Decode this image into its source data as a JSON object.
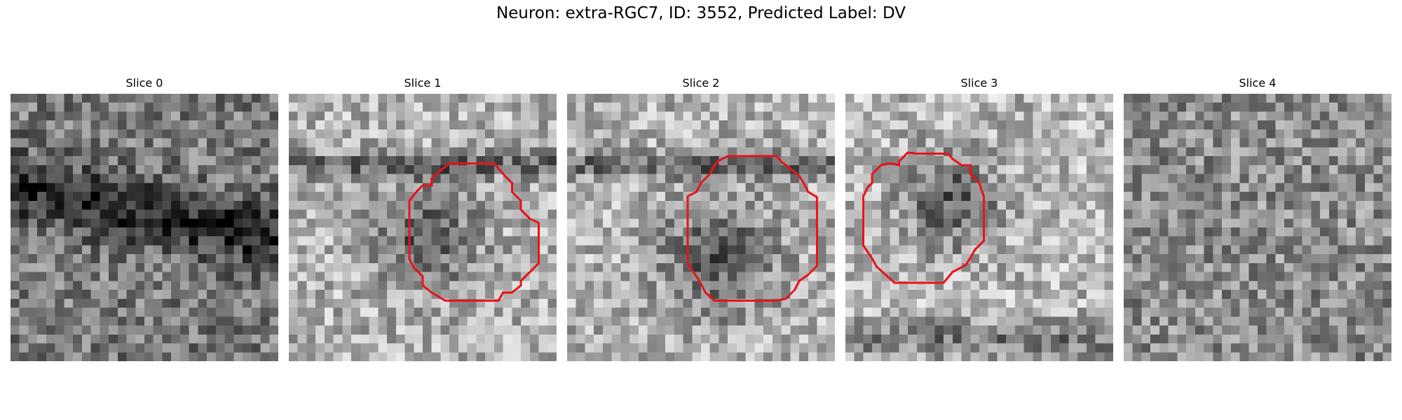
{
  "figure": {
    "title": "Neuron: extra-RGC7, ID: 3552, Predicted Label: DV"
  },
  "slices": [
    {
      "label": "Slice 0",
      "has_roi": false,
      "seed": 11,
      "base": 0.48,
      "blob": null
    },
    {
      "label": "Slice 1",
      "has_roi": true,
      "seed": 23,
      "base": 0.7,
      "blob": [
        0.5,
        0.52,
        0.22
      ]
    },
    {
      "label": "Slice 2",
      "has_roi": true,
      "seed": 37,
      "base": 0.7,
      "blob": [
        0.55,
        0.6,
        0.25
      ]
    },
    {
      "label": "Slice 3",
      "has_roi": true,
      "seed": 41,
      "base": 0.72,
      "blob": [
        0.38,
        0.38,
        0.22
      ]
    },
    {
      "label": "Slice 4",
      "has_roi": false,
      "seed": 53,
      "base": 0.55,
      "blob": null
    }
  ],
  "roi_color": "#e8141a",
  "colormap": "gray"
}
